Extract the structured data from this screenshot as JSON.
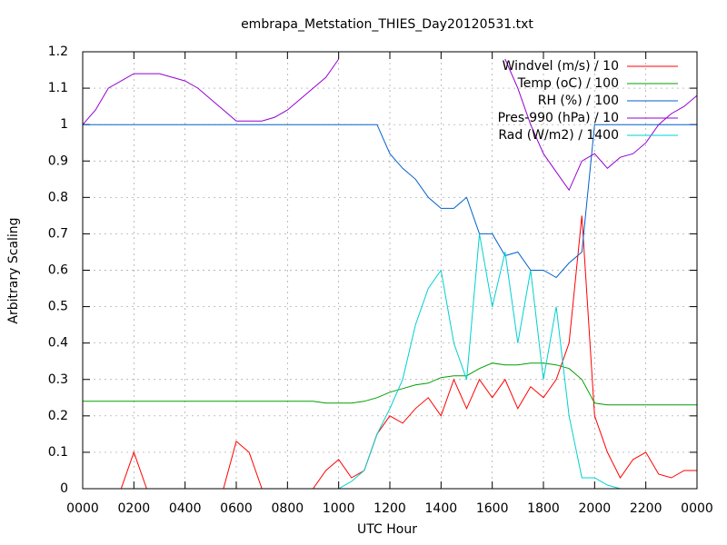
{
  "chart_data": {
    "type": "line",
    "title": "embrapa_Metstation_THIES_Day20120531.txt",
    "x_label": "UTC Hour",
    "y_label": "Arbitrary Scaling",
    "xlim": [
      0,
      24
    ],
    "ylim": [
      0,
      1.2
    ],
    "xticks": [
      {
        "value": 0,
        "label": "0000"
      },
      {
        "value": 2,
        "label": "0200"
      },
      {
        "value": 4,
        "label": "0400"
      },
      {
        "value": 6,
        "label": "0600"
      },
      {
        "value": 8,
        "label": "0800"
      },
      {
        "value": 10,
        "label": "1000"
      },
      {
        "value": 12,
        "label": "1200"
      },
      {
        "value": 14,
        "label": "1400"
      },
      {
        "value": 16,
        "label": "1600"
      },
      {
        "value": 18,
        "label": "1800"
      },
      {
        "value": 20,
        "label": "2000"
      },
      {
        "value": 22,
        "label": "2200"
      },
      {
        "value": 24,
        "label": "0000"
      }
    ],
    "yticks": [
      0,
      0.1,
      0.2,
      0.3,
      0.4,
      0.5,
      0.6,
      0.7,
      0.8,
      0.9,
      1,
      1.1,
      1.2
    ],
    "grid": true,
    "legend_position": "top-right",
    "x": [
      0,
      0.5,
      1,
      1.5,
      2,
      2.5,
      3,
      3.5,
      4,
      4.5,
      5,
      5.5,
      6,
      6.5,
      7,
      7.5,
      8,
      8.5,
      9,
      9.5,
      10,
      10.5,
      11,
      11.5,
      12,
      12.5,
      13,
      13.5,
      14,
      14.5,
      15,
      15.5,
      16,
      16.5,
      17,
      17.5,
      18,
      18.5,
      19,
      19.5,
      20,
      20.5,
      21,
      21.5,
      22,
      22.5,
      23,
      23.5,
      24
    ],
    "series": [
      {
        "name": "Windvel (m/s) / 10",
        "color": "#ff0000",
        "values": [
          0,
          0,
          0,
          0,
          0.1,
          0,
          0,
          0,
          0,
          0,
          0,
          0,
          0.13,
          0.1,
          0,
          0,
          0,
          0,
          0,
          0.05,
          0.08,
          0.03,
          0.05,
          0.15,
          0.2,
          0.18,
          0.22,
          0.25,
          0.2,
          0.3,
          0.22,
          0.3,
          0.25,
          0.3,
          0.22,
          0.28,
          0.25,
          0.3,
          0.4,
          0.75,
          0.2,
          0.1,
          0.03,
          0.08,
          0.1,
          0.04,
          0.03,
          0.05,
          0.05
        ]
      },
      {
        "name": "Temp (oC) / 100",
        "color": "#00a000",
        "values": [
          0.24,
          0.24,
          0.24,
          0.24,
          0.24,
          0.24,
          0.24,
          0.24,
          0.24,
          0.24,
          0.24,
          0.24,
          0.24,
          0.24,
          0.24,
          0.24,
          0.24,
          0.24,
          0.24,
          0.235,
          0.235,
          0.235,
          0.24,
          0.25,
          0.265,
          0.275,
          0.285,
          0.29,
          0.305,
          0.31,
          0.31,
          0.33,
          0.345,
          0.34,
          0.34,
          0.345,
          0.345,
          0.34,
          0.33,
          0.3,
          0.235,
          0.23,
          0.23,
          0.23,
          0.23,
          0.23,
          0.23,
          0.23,
          0.23
        ]
      },
      {
        "name": "RH (%) / 100",
        "color": "#0060d0",
        "values": [
          1,
          1,
          1,
          1,
          1,
          1,
          1,
          1,
          1,
          1,
          1,
          1,
          1,
          1,
          1,
          1,
          1,
          1,
          1,
          1,
          1,
          1,
          1,
          1,
          0.92,
          0.88,
          0.85,
          0.8,
          0.77,
          0.77,
          0.8,
          0.7,
          0.7,
          0.64,
          0.65,
          0.6,
          0.6,
          0.58,
          0.62,
          0.65,
          1,
          1,
          1,
          1,
          1,
          1,
          1,
          1,
          1
        ]
      },
      {
        "name": "Pres-990 (hPa) / 10",
        "color": "#9400d3",
        "values": [
          1,
          1.04,
          1.1,
          1.12,
          1.14,
          1.14,
          1.14,
          1.13,
          1.12,
          1.1,
          1.07,
          1.04,
          1.01,
          1.01,
          1.01,
          1.02,
          1.04,
          1.07,
          1.1,
          1.13,
          1.18,
          null,
          null,
          null,
          null,
          null,
          null,
          null,
          null,
          null,
          null,
          null,
          null,
          1.18,
          1.1,
          1,
          0.92,
          0.87,
          0.82,
          0.9,
          0.92,
          0.88,
          0.91,
          0.92,
          0.95,
          1,
          1.03,
          1.05,
          1.08
        ]
      },
      {
        "name": "Rad (W/m2) / 1400",
        "color": "#00d0d0",
        "values": [
          0,
          0,
          0,
          0,
          0,
          0,
          0,
          0,
          0,
          0,
          0,
          0,
          0,
          0,
          0,
          0,
          0,
          0,
          0,
          0,
          0,
          0.02,
          0.05,
          0.15,
          0.22,
          0.3,
          0.45,
          0.55,
          0.6,
          0.4,
          0.3,
          0.7,
          0.5,
          0.65,
          0.4,
          0.6,
          0.3,
          0.5,
          0.2,
          0.03,
          0.03,
          0.01,
          0,
          0,
          0,
          0,
          0,
          0,
          0
        ]
      }
    ]
  }
}
